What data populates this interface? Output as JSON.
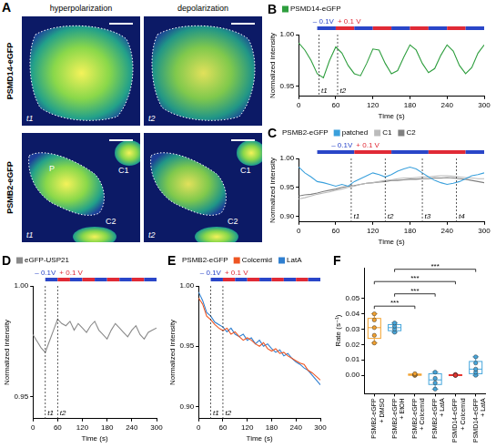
{
  "panel_A": {
    "letter": "A",
    "columns": [
      "hyperpolarization",
      "depolarization"
    ],
    "rows": [
      {
        "label": "PSMD14-eGFP",
        "images": [
          {
            "time": "t1"
          },
          {
            "time": "t2"
          }
        ]
      },
      {
        "label": "PSMB2-eGFP",
        "images": [
          {
            "time": "t1",
            "labels": [
              "P",
              "C1",
              "C2"
            ]
          },
          {
            "time": "t2",
            "labels": [
              "C1",
              "C2"
            ]
          }
        ]
      }
    ]
  },
  "chart_data": [
    {
      "panel": "B",
      "type": "line",
      "x_label": "Time (s)",
      "y_label": "Normalized intensity",
      "x": [
        0,
        10,
        20,
        30,
        40,
        50,
        60,
        70,
        80,
        90,
        100,
        110,
        120,
        130,
        140,
        150,
        160,
        170,
        180,
        190,
        200,
        210,
        220,
        230,
        240,
        250,
        260,
        270,
        280,
        290,
        300
      ],
      "series": [
        {
          "name": "PSMD14-eGFP",
          "color": "#2e9e3e",
          "values": [
            0.992,
            0.985,
            0.975,
            0.962,
            0.958,
            0.975,
            0.988,
            0.982,
            0.97,
            0.962,
            0.96,
            0.972,
            0.986,
            0.985,
            0.972,
            0.962,
            0.965,
            0.978,
            0.99,
            0.985,
            0.972,
            0.963,
            0.967,
            0.98,
            0.99,
            0.984,
            0.97,
            0.962,
            0.968,
            0.982,
            0.99
          ]
        }
      ],
      "xlim": [
        0,
        300
      ],
      "xticks": [
        0,
        60,
        120,
        180,
        240,
        300
      ],
      "ylim": [
        0.94,
        1.0
      ],
      "yticks": [
        0.95,
        {
          "value": 1,
          "label": "1.00"
        }
      ],
      "grid": false,
      "legend": "top",
      "stimulus": {
        "labels": [
          {
            "text": "– 0.1V",
            "color": "#2a46c8"
          },
          {
            "text": "+ 0.1 V",
            "color": "#e02a36"
          }
        ],
        "boundaries": [
          30,
          60,
          90,
          120,
          150,
          180,
          210,
          240,
          270,
          300
        ]
      },
      "markers": [
        {
          "x": 33,
          "label": "t1"
        },
        {
          "x": 63,
          "label": "t2"
        }
      ]
    },
    {
      "panel": "C",
      "type": "line",
      "title": "PSMB2-eGFP",
      "x_label": "Time (s)",
      "y_label": "Normalized intensity",
      "x": [
        0,
        10,
        20,
        30,
        40,
        50,
        60,
        70,
        80,
        90,
        100,
        110,
        120,
        130,
        140,
        150,
        160,
        170,
        180,
        190,
        200,
        210,
        220,
        230,
        240,
        250,
        260,
        270,
        280,
        290,
        300
      ],
      "series": [
        {
          "name": "patched",
          "color": "#3aa0dc",
          "values": [
            0.985,
            0.975,
            0.968,
            0.96,
            0.958,
            0.955,
            0.952,
            0.955,
            0.952,
            0.96,
            0.965,
            0.97,
            0.975,
            0.972,
            0.968,
            0.972,
            0.978,
            0.982,
            0.985,
            0.982,
            0.975,
            0.968,
            0.962,
            0.958,
            0.955,
            0.957,
            0.96,
            0.965,
            0.97,
            0.972,
            0.975
          ]
        },
        {
          "name": "C1",
          "color": "#bbbbbb",
          "values": [
            0.93,
            0.932,
            0.935,
            0.938,
            0.94,
            0.942,
            0.945,
            0.947,
            0.95,
            0.952,
            0.955,
            0.957,
            0.958,
            0.96,
            0.962,
            0.963,
            0.965,
            0.966,
            0.966,
            0.967,
            0.968,
            0.968,
            0.969,
            0.97,
            0.97,
            0.969,
            0.968,
            0.967,
            0.966,
            0.965,
            0.965
          ]
        },
        {
          "name": "C2",
          "color": "#808080",
          "values": [
            0.935,
            0.937,
            0.938,
            0.94,
            0.943,
            0.945,
            0.947,
            0.95,
            0.952,
            0.953,
            0.955,
            0.957,
            0.958,
            0.959,
            0.96,
            0.962,
            0.962,
            0.963,
            0.964,
            0.964,
            0.965,
            0.965,
            0.966,
            0.966,
            0.967,
            0.966,
            0.965,
            0.964,
            0.962,
            0.96,
            0.958
          ]
        }
      ],
      "xlim": [
        0,
        300
      ],
      "xticks": [
        0,
        60,
        120,
        180,
        240,
        300
      ],
      "ylim": [
        0.89,
        1.0
      ],
      "yticks": [
        {
          "value": 0.9,
          "label": "0.90"
        },
        0.95,
        {
          "value": 1,
          "label": "1.00"
        }
      ],
      "grid": false,
      "legend": "top",
      "stimulus": {
        "labels": [
          {
            "text": "– 0.1V",
            "color": "#2a46c8"
          },
          {
            "text": "+ 0.1 V",
            "color": "#e02a36"
          }
        ],
        "boundaries": [
          30,
          90,
          150,
          210,
          270,
          300
        ]
      },
      "markers": [
        {
          "x": 85,
          "label": "t1"
        },
        {
          "x": 140,
          "label": "t2"
        },
        {
          "x": 200,
          "label": "t3"
        },
        {
          "x": 255,
          "label": "t4"
        }
      ]
    },
    {
      "panel": "D",
      "type": "line",
      "x_label": "Time (s)",
      "y_label": "Normalized intensity",
      "x": [
        0,
        10,
        20,
        30,
        40,
        50,
        60,
        70,
        80,
        90,
        100,
        110,
        120,
        130,
        140,
        150,
        160,
        170,
        180,
        190,
        200,
        210,
        220,
        230,
        240,
        250,
        260,
        270,
        280,
        290,
        300
      ],
      "series": [
        {
          "name": "eGFP-USP21",
          "color": "#8a8a8a",
          "values": [
            0.978,
            0.975,
            0.972,
            0.97,
            0.975,
            0.98,
            0.985,
            0.983,
            0.982,
            0.984,
            0.98,
            0.983,
            0.981,
            0.979,
            0.982,
            0.984,
            0.98,
            0.978,
            0.976,
            0.98,
            0.983,
            0.981,
            0.979,
            0.977,
            0.98,
            0.982,
            0.978,
            0.976,
            0.979,
            0.98,
            0.981
          ]
        }
      ],
      "xlim": [
        0,
        300
      ],
      "xticks": [
        0,
        60,
        120,
        180,
        240,
        300
      ],
      "ylim": [
        0.94,
        1.0
      ],
      "yticks": [
        0.95,
        {
          "value": 1,
          "label": "1.00"
        }
      ],
      "grid": false,
      "legend": "top",
      "stimulus": {
        "labels": [
          {
            "text": "– 0.1V",
            "color": "#2a46c8"
          },
          {
            "text": "+ 0.1 V",
            "color": "#e02a36"
          }
        ],
        "boundaries": [
          30,
          60,
          90,
          120,
          150,
          180,
          210,
          240,
          270,
          300
        ]
      },
      "markers": [
        {
          "x": 30,
          "label": "t1"
        },
        {
          "x": 60,
          "label": "t2"
        }
      ]
    },
    {
      "panel": "E",
      "type": "line",
      "title": "PSMB2-eGFP",
      "x_label": "Time (s)",
      "y_label": "Normalized intensity",
      "x": [
        0,
        10,
        20,
        30,
        40,
        50,
        60,
        70,
        80,
        90,
        100,
        110,
        120,
        130,
        140,
        150,
        160,
        170,
        180,
        190,
        200,
        210,
        220,
        230,
        240,
        250,
        260,
        270,
        280,
        290,
        300
      ],
      "series": [
        {
          "name": "Colcemid",
          "color": "#ee5522",
          "values": [
            0.99,
            0.985,
            0.975,
            0.972,
            0.968,
            0.965,
            0.963,
            0.965,
            0.96,
            0.962,
            0.958,
            0.955,
            0.957,
            0.955,
            0.952,
            0.95,
            0.953,
            0.948,
            0.946,
            0.948,
            0.944,
            0.945,
            0.942,
            0.94,
            0.938,
            0.936,
            0.935,
            0.93,
            0.928,
            0.925,
            0.922
          ]
        },
        {
          "name": "LatA",
          "color": "#2f7fd0",
          "values": [
            0.995,
            0.988,
            0.978,
            0.975,
            0.97,
            0.968,
            0.966,
            0.962,
            0.965,
            0.96,
            0.958,
            0.96,
            0.955,
            0.957,
            0.952,
            0.955,
            0.95,
            0.952,
            0.948,
            0.945,
            0.947,
            0.942,
            0.944,
            0.94,
            0.937,
            0.935,
            0.932,
            0.93,
            0.926,
            0.922,
            0.918
          ]
        }
      ],
      "xlim": [
        0,
        300
      ],
      "xticks": [
        0,
        60,
        120,
        180,
        240,
        300
      ],
      "ylim": [
        0.89,
        1.0
      ],
      "yticks": [
        {
          "value": 0.9,
          "label": "0.90"
        },
        0.95,
        {
          "value": 1,
          "label": "1.00"
        }
      ],
      "grid": false,
      "legend": "top",
      "stimulus": {
        "labels": [
          {
            "text": "– 0.1V",
            "color": "#2a46c8"
          },
          {
            "text": "+ 0.1 V",
            "color": "#e02a36"
          }
        ],
        "boundaries": [
          30,
          60,
          90,
          120,
          150,
          180,
          210,
          240,
          270,
          300
        ]
      },
      "markers": [
        {
          "x": 30,
          "label": "t1"
        },
        {
          "x": 60,
          "label": "t2"
        }
      ]
    },
    {
      "panel": "F",
      "type": "box",
      "y_label": "Rate (s⁻¹)",
      "categories": [
        "PSMB2-eGFP + DMSO",
        "PSMB2-eGFP + EtOH",
        "PSMB2-eGFP + Colcemid",
        "PSMB2-eGFP + LatA",
        "PSMD14-eGFP + Colcemid",
        "PSMD14-eGFP + LatA"
      ],
      "colors": [
        "#f2a02c",
        "#45a6dc",
        "#f2a02c",
        "#45a6dc",
        "#e8332f",
        "#45a6dc"
      ],
      "points": [
        [
          0.021,
          0.026,
          0.031,
          0.036,
          0.04
        ],
        [
          0.028,
          0.03,
          0.032,
          0.034
        ],
        [
          0,
          0,
          0.0005,
          0.001
        ],
        [
          -0.009,
          -0.005,
          -0.002,
          0.002
        ],
        [
          0,
          0,
          0.0003,
          0.0005,
          0
        ],
        [
          0,
          0.002,
          0.004,
          0.008,
          0.012
        ]
      ],
      "boxes": [
        {
          "min": 0.021,
          "q1": 0.024,
          "median": 0.031,
          "q3": 0.037,
          "max": 0.04
        },
        {
          "min": 0.028,
          "q1": 0.029,
          "median": 0.031,
          "q3": 0.033,
          "max": 0.034
        },
        {
          "min": 0,
          "q1": 0,
          "median": 0.0003,
          "q3": 0.0008,
          "max": 0.001
        },
        {
          "min": -0.009,
          "q1": -0.006,
          "median": -0.003,
          "q3": 0.001,
          "max": 0.002
        },
        {
          "min": 0,
          "q1": 0,
          "median": 0,
          "q3": 0.0004,
          "max": 0.0005
        },
        {
          "min": 0,
          "q1": 0.001,
          "median": 0.004,
          "q3": 0.009,
          "max": 0.012
        }
      ],
      "ylim": [
        -0.012,
        0.07
      ],
      "yticks": [
        {
          "value": 0,
          "label": "0.00"
        },
        0.01,
        0.02,
        0.03,
        0.04,
        0.05
      ],
      "grid": false,
      "significance": [
        {
          "from": 0,
          "to": 2,
          "y": 0.045,
          "label": "***"
        },
        {
          "from": 1,
          "to": 3,
          "y": 0.053,
          "label": "***"
        },
        {
          "from": 0,
          "to": 4,
          "y": 0.061,
          "label": "***"
        },
        {
          "from": 1,
          "to": 5,
          "y": 0.069,
          "label": "***"
        }
      ]
    }
  ]
}
